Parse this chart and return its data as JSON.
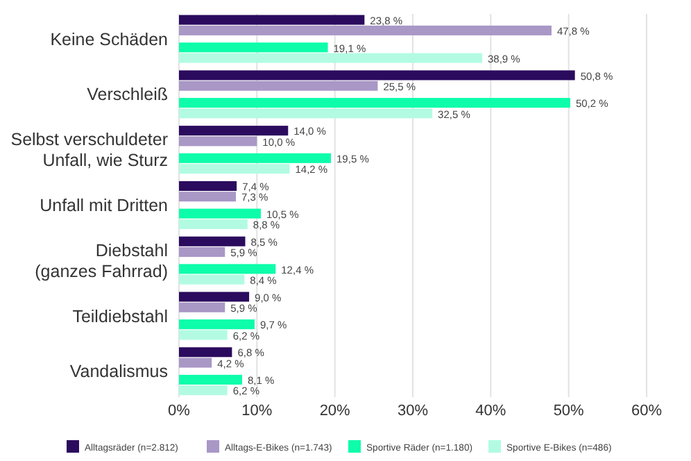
{
  "chart_data": {
    "type": "bar",
    "orientation": "horizontal",
    "categories": [
      "Keine Schäden",
      "Verschleiß",
      "Selbst verschuldeter Unfall, wie Sturz",
      "Unfall mit Dritten",
      "Diebstahl (ganzes Fahrrad)",
      "Teildiebstahl",
      "Vandalismus"
    ],
    "series": [
      {
        "name": "Alltagsräder (n=2.812)",
        "color": "#2b0b5e",
        "values": [
          23.8,
          50.8,
          14.0,
          7.4,
          8.5,
          9.0,
          6.8
        ],
        "value_labels": [
          "23,8 %",
          "50,8 %",
          "14,0 %",
          "7,4 %",
          "8,5 %",
          "9,0 %",
          "6,8 %"
        ]
      },
      {
        "name": "Alltags-E-Bikes (n=1.743)",
        "color": "#a997c6",
        "values": [
          47.8,
          25.5,
          10.0,
          7.3,
          5.9,
          5.9,
          4.2
        ],
        "value_labels": [
          "47,8 %",
          "25,5 %",
          "10,0 %",
          "7,3 %",
          "5,9 %",
          "5,9 %",
          "4,2 %"
        ]
      },
      {
        "name": "Sportive Räder (n=1.180)",
        "color": "#0dfdaa",
        "values": [
          19.1,
          50.2,
          19.5,
          10.5,
          12.4,
          9.7,
          8.1
        ],
        "value_labels": [
          "19,1 %",
          "50,2 %",
          "19,5 %",
          "10,5 %",
          "12,4 %",
          "9,7 %",
          "8,1 %"
        ]
      },
      {
        "name": "Sportive E-Bikes (n=486)",
        "color": "#b2fbe2",
        "values": [
          38.9,
          32.5,
          14.2,
          8.8,
          8.4,
          6.2,
          6.2
        ],
        "value_labels": [
          "38,9 %",
          "32,5 %",
          "14,2 %",
          "8,8 %",
          "8,4 %",
          "6,2 %",
          "6,2 %"
        ]
      }
    ],
    "xlim": [
      0,
      60
    ],
    "xticks": [
      {
        "value": 0,
        "label": "0%"
      },
      {
        "value": 10,
        "label": "10%"
      },
      {
        "value": 20,
        "label": "20%"
      },
      {
        "value": 30,
        "label": "30%"
      },
      {
        "value": 40,
        "label": "40%"
      },
      {
        "value": 50,
        "label": "50%"
      },
      {
        "value": 60,
        "label": "60%"
      }
    ],
    "grid": "x",
    "legend": "bottom"
  }
}
